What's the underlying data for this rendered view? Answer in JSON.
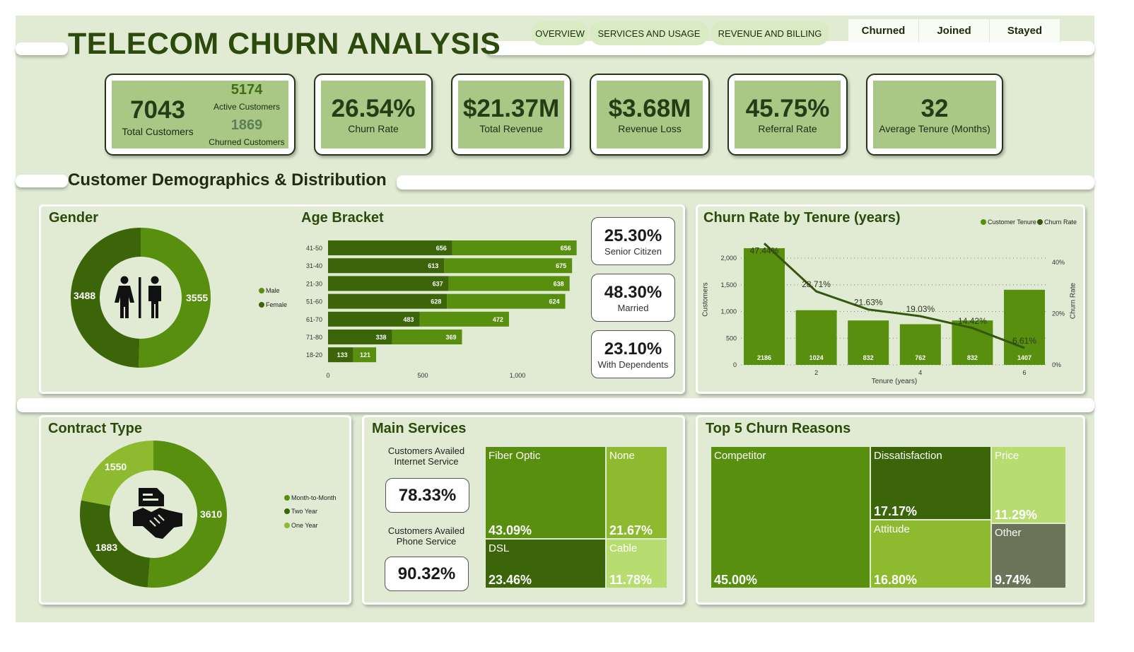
{
  "colors": {
    "dark": "#3b6508",
    "mid": "#588f0f",
    "light": "#8dba2e",
    "pale": "#b7dc70",
    "grey": "#6b7358",
    "line": "#34560d"
  },
  "header": {
    "title": "TELECOM CHURN ANALYSIS",
    "nav": [
      "OVERVIEW",
      "SERVICES AND USAGE",
      "REVENUE AND BILLING"
    ],
    "segments": [
      "Churned",
      "Joined",
      "Stayed"
    ]
  },
  "kpis": {
    "customers": {
      "total": "7043",
      "total_label": "Total Customers",
      "active": "5174",
      "active_label": "Active Customers",
      "churned": "1869",
      "churned_label": "Churned Customers"
    },
    "cards": [
      {
        "value": "26.54%",
        "label": "Churn Rate"
      },
      {
        "value": "$21.37M",
        "label": "Total Revenue"
      },
      {
        "value": "$3.68M",
        "label": "Revenue Loss"
      },
      {
        "value": "45.75%",
        "label": "Referral Rate"
      },
      {
        "value": "32",
        "label": "Average Tenure (Months)"
      }
    ]
  },
  "section_title": "Customer Demographics & Distribution",
  "gender": {
    "title": "Gender",
    "icon": "male-female-icon",
    "chart_data": {
      "type": "pie",
      "series": [
        {
          "name": "Male",
          "value": 3555
        },
        {
          "name": "Female",
          "value": 3488
        }
      ]
    },
    "labels": {
      "male": "3555",
      "female": "3488"
    },
    "legend": [
      "Male",
      "Female"
    ]
  },
  "age": {
    "title": "Age Bracket",
    "chart_data": {
      "type": "bar",
      "orientation": "horizontal",
      "stacked": true,
      "categories": [
        "41-50",
        "31-40",
        "21-30",
        "51-60",
        "61-70",
        "71-80",
        "18-20"
      ],
      "series": [
        {
          "values": [
            656,
            613,
            637,
            628,
            483,
            338,
            133
          ]
        },
        {
          "values": [
            656,
            675,
            638,
            624,
            472,
            369,
            121
          ]
        }
      ],
      "xticks": [
        "0",
        "500",
        "1,000"
      ],
      "xlim": [
        0,
        1300
      ]
    }
  },
  "stats": [
    {
      "value": "25.30%",
      "label": "Senior Citizen"
    },
    {
      "value": "48.30%",
      "label": "Married"
    },
    {
      "value": "23.10%",
      "label": "With Dependents"
    }
  ],
  "tenure": {
    "title": "Churn Rate by Tenure (years)",
    "legend": [
      "Customer Tenure",
      "Churn Rate"
    ],
    "chart_data": {
      "type": "bar+line",
      "x": [
        1,
        2,
        3,
        4,
        5,
        6
      ],
      "xticks": [
        "2",
        "4",
        "6"
      ],
      "xlabel": "Tenure (years)",
      "ylabel": "Customers",
      "y2label": "Churn Rate",
      "yticks": [
        "0",
        "500",
        "1,000",
        "1,500",
        "2,000"
      ],
      "y2ticks": [
        "0%",
        "20%",
        "40%"
      ],
      "ylim": [
        0,
        2200
      ],
      "y2lim": [
        0,
        42
      ],
      "series": [
        {
          "name": "Customer Tenure",
          "values": [
            2186,
            1024,
            832,
            762,
            832,
            1407
          ]
        },
        {
          "name": "Churn Rate",
          "values": [
            47.44,
            28.71,
            21.63,
            19.03,
            14.42,
            6.61
          ],
          "labels": [
            "47.44%",
            "28.71%",
            "21.63%",
            "19.03%",
            "14.42%",
            "6.61%"
          ]
        }
      ]
    }
  },
  "contract": {
    "title": "Contract Type",
    "icon": "contract-handshake-icon",
    "chart_data": {
      "type": "pie",
      "series": [
        {
          "name": "Month-to-Month",
          "value": 3610
        },
        {
          "name": "Two Year",
          "value": 1883
        },
        {
          "name": "One Year",
          "value": 1550
        }
      ]
    },
    "labels": [
      "3610",
      "1883",
      "1550"
    ],
    "legend": [
      "Month-to-Month",
      "Two Year",
      "One Year"
    ]
  },
  "services": {
    "title": "Main Services",
    "internet_label": "Customers Availed Internet Service",
    "internet_value": "78.33%",
    "phone_label": "Customers Availed Phone Service",
    "phone_value": "90.32%",
    "treemap": [
      {
        "name": "Fiber Optic",
        "value": "43.09%"
      },
      {
        "name": "None",
        "value": "21.67%"
      },
      {
        "name": "DSL",
        "value": "23.46%"
      },
      {
        "name": "Cable",
        "value": "11.78%"
      }
    ]
  },
  "reasons": {
    "title": "Top 5 Churn Reasons",
    "treemap": [
      {
        "name": "Competitor",
        "value": "45.00%"
      },
      {
        "name": "Dissatisfaction",
        "value": "17.17%"
      },
      {
        "name": "Attitude",
        "value": "16.80%"
      },
      {
        "name": "Price",
        "value": "11.29%"
      },
      {
        "name": "Other",
        "value": "9.74%"
      }
    ]
  }
}
